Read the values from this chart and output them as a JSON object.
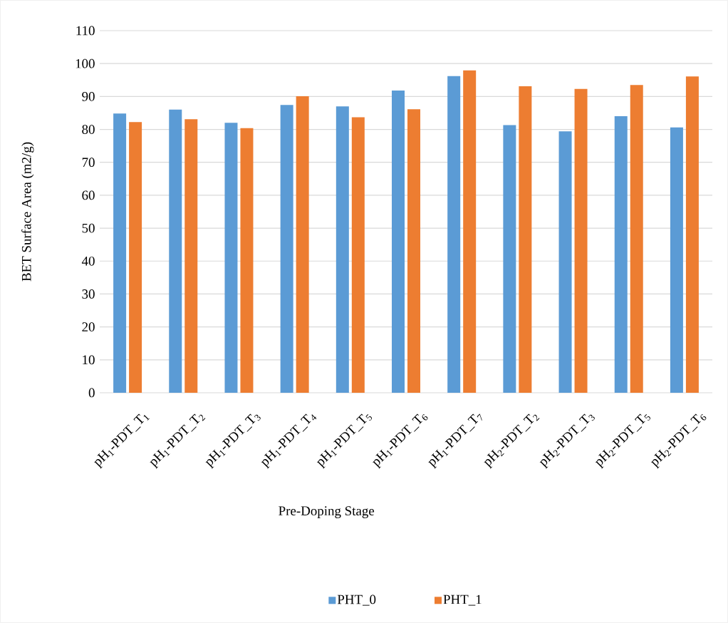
{
  "chart_data": {
    "type": "bar",
    "xlabel": "Pre-Doping Stage",
    "ylabel": "BET Surface Area (m2/g)",
    "categories": [
      "pH$_{1}$-PDT_T$_{1}$",
      "pH$_{1}$-PDT_T$_{2}$",
      "pH$_{1}$-PDT_T$_{3}$",
      "pH$_{1}$-PDT_T$_{4}$",
      "pH$_{1}$-PDT_T$_{5}$",
      "pH$_{1}$-PDT_T$_{6}$",
      "pH$_{1}$-PDT_T$_{7}$",
      "pH$_{2}$-PDT_T$_{2}$",
      "pH$_{2}$-PDT_T$_{3}$",
      "pH$_{2}$-PDT_T$_{5}$",
      "pH$_{2}$-PDT_T$_{6}$"
    ],
    "series": [
      {
        "name": "PHT_0",
        "color": "#5b9bd5",
        "values": [
          84.8,
          86.0,
          82.0,
          87.4,
          87.0,
          91.8,
          96.2,
          81.3,
          79.4,
          84.0,
          80.6
        ]
      },
      {
        "name": "PHT_1",
        "color": "#ed7d31",
        "values": [
          82.2,
          83.1,
          80.4,
          90.1,
          83.7,
          86.1,
          97.9,
          93.1,
          92.3,
          93.5,
          96.1
        ]
      }
    ],
    "ylim": [
      0,
      110
    ],
    "yticks": [
      0,
      10,
      20,
      30,
      40,
      50,
      60,
      70,
      80,
      90,
      100,
      110
    ],
    "grid": "y",
    "legend": "bottom"
  }
}
